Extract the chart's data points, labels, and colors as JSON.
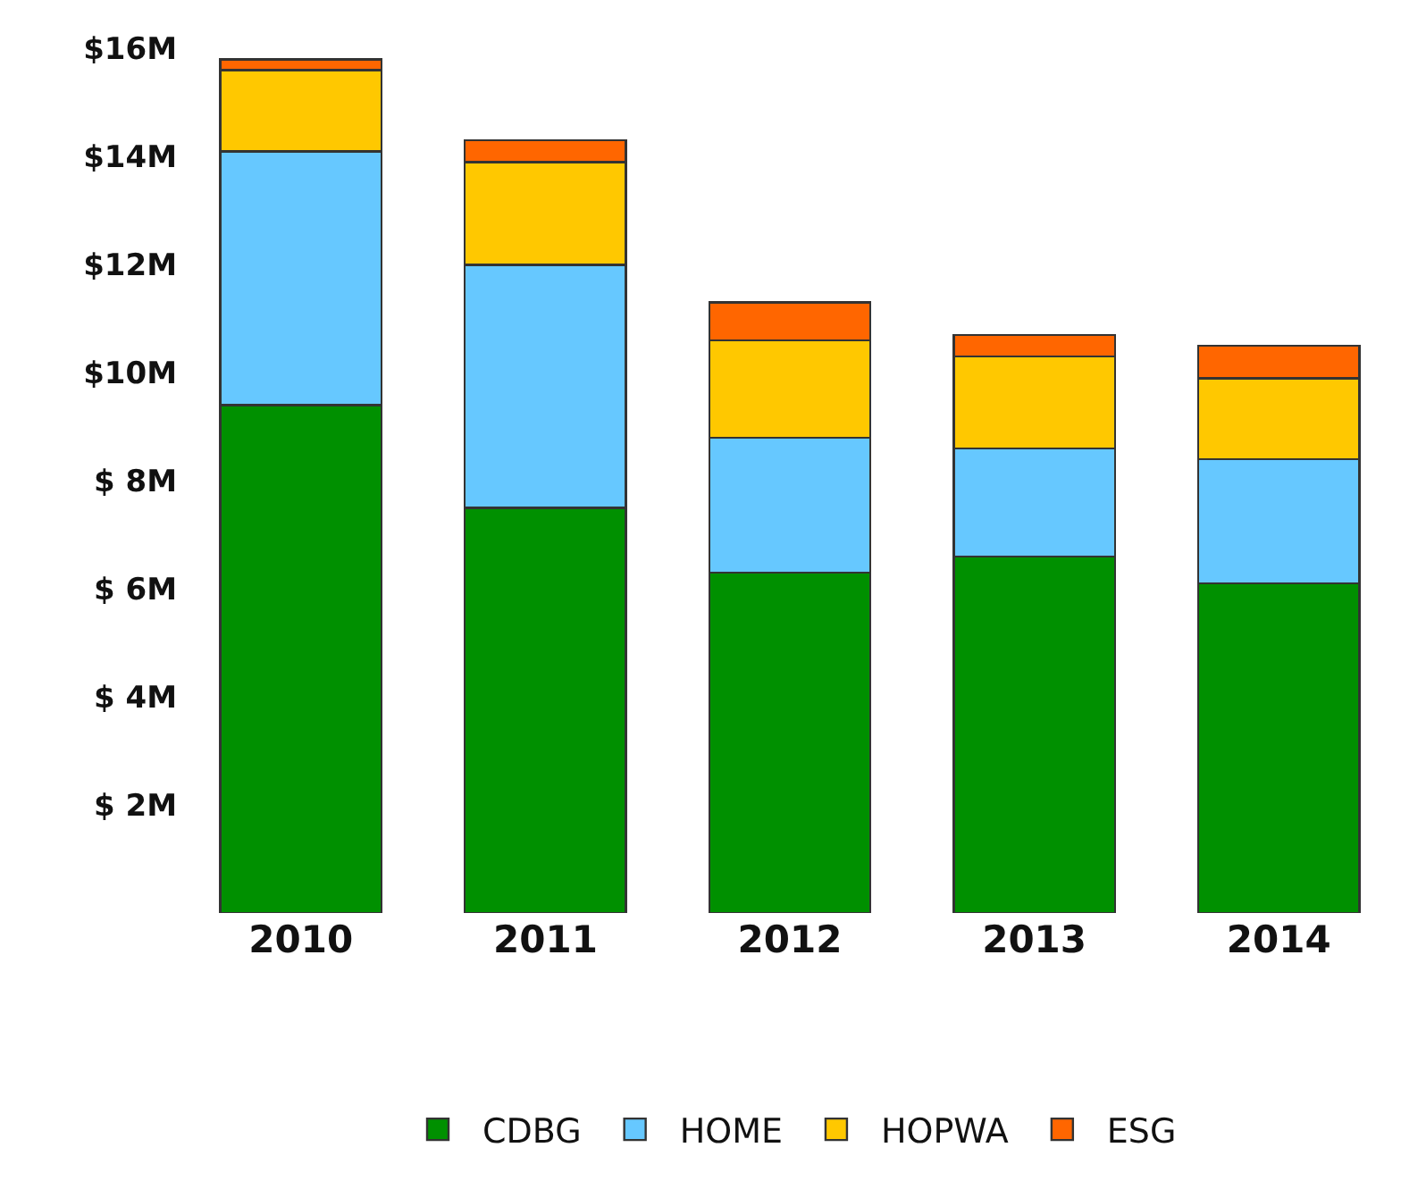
{
  "chart_data": {
    "type": "bar",
    "stacked": true,
    "categories": [
      "2010",
      "2011",
      "2012",
      "2013",
      "2014"
    ],
    "series": [
      {
        "name": "CDBG",
        "color": "#009000",
        "values": [
          9.4,
          7.5,
          6.3,
          6.6,
          6.1
        ]
      },
      {
        "name": "HOME",
        "color": "#66c8ff",
        "values": [
          4.7,
          4.5,
          2.5,
          2.0,
          2.3
        ]
      },
      {
        "name": "HOPWA",
        "color": "#ffc800",
        "values": [
          1.5,
          1.9,
          1.8,
          1.7,
          1.5
        ]
      },
      {
        "name": "ESG",
        "color": "#ff6600",
        "values": [
          0.2,
          0.4,
          0.7,
          0.4,
          0.6
        ]
      }
    ],
    "ylim": [
      0,
      16.9
    ],
    "yticks": [
      {
        "value": 2,
        "label": "$ 2M"
      },
      {
        "value": 4,
        "label": "$ 4M"
      },
      {
        "value": 6,
        "label": "$ 6M"
      },
      {
        "value": 8,
        "label": "$ 8M"
      },
      {
        "value": 10,
        "label": "$10M"
      },
      {
        "value": 12,
        "label": "$12M"
      },
      {
        "value": 14,
        "label": "$14M"
      },
      {
        "value": 16,
        "label": "$16M"
      }
    ],
    "grid": false,
    "legend": "bottom"
  }
}
